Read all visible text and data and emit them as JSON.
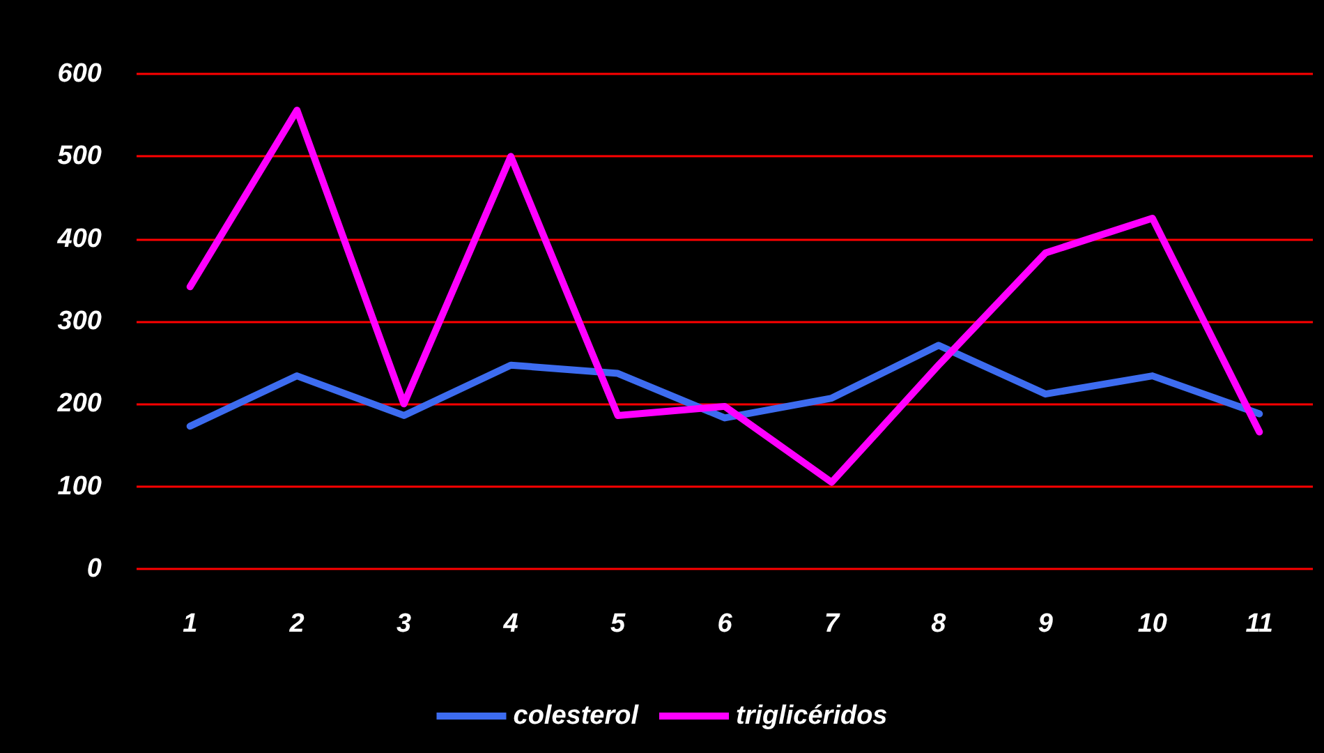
{
  "chart_data": {
    "type": "line",
    "categories": [
      "1",
      "2",
      "3",
      "4",
      "5",
      "6",
      "7",
      "8",
      "9",
      "10",
      "11"
    ],
    "series": [
      {
        "name": "colesterol",
        "color": "#3d6cf0",
        "values": [
          173,
          234,
          186,
          247,
          237,
          183,
          207,
          271,
          212,
          234,
          188
        ]
      },
      {
        "name": "triglicéridos",
        "color": "#ff00ff",
        "values": [
          342,
          556,
          200,
          500,
          186,
          197,
          105,
          247,
          383,
          425,
          166
        ]
      }
    ],
    "ylim": [
      0,
      600
    ],
    "yticks": [
      0,
      100,
      200,
      300,
      400,
      500,
      600
    ],
    "grid": "y",
    "legend": "bottom",
    "marker": "none",
    "line_style": "solid"
  }
}
